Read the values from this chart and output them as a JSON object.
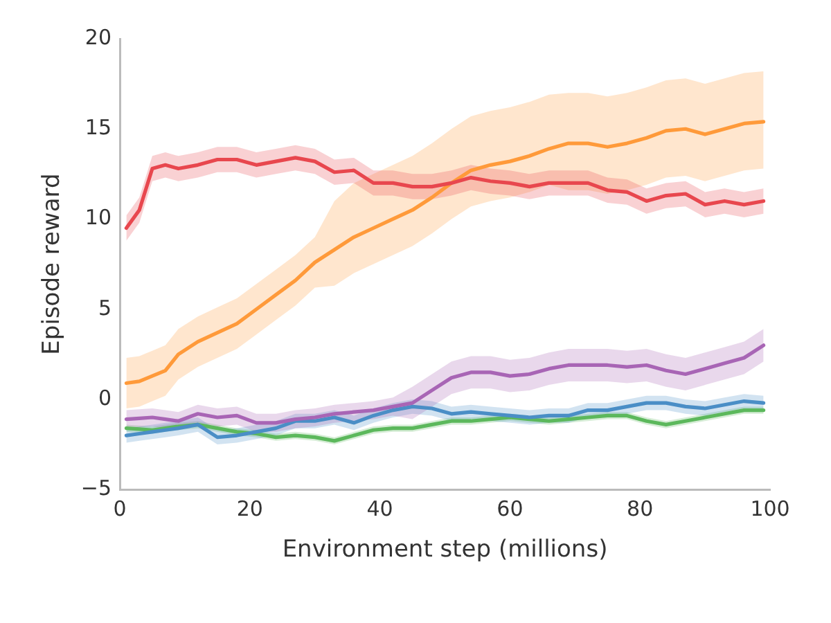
{
  "chart_data": {
    "type": "line",
    "xlabel": "Environment step (millions)",
    "ylabel": "Episode reward",
    "xlim": [
      0,
      100
    ],
    "xticks": [
      0,
      20,
      40,
      60,
      80,
      100
    ],
    "ylim": [
      -5,
      20
    ],
    "yticks": [
      -5,
      0,
      5,
      10,
      15,
      20
    ],
    "grid": false,
    "legend": false,
    "marker": "none",
    "line_style": "solid",
    "x": [
      1,
      3,
      5,
      7,
      9,
      12,
      15,
      18,
      21,
      24,
      27,
      30,
      33,
      36,
      39,
      42,
      45,
      48,
      51,
      54,
      57,
      60,
      63,
      66,
      69,
      72,
      75,
      78,
      81,
      84,
      87,
      90,
      93,
      96,
      99
    ],
    "series": [
      {
        "color": "#e8474e",
        "values": [
          9.5,
          10.5,
          12.8,
          13,
          12.8,
          13,
          13.3,
          13.3,
          13,
          13.2,
          13.4,
          13.2,
          12.6,
          12.7,
          12,
          12,
          11.8,
          11.8,
          12,
          12.3,
          12.1,
          12,
          11.8,
          12,
          12,
          12,
          11.6,
          11.5,
          11,
          11.3,
          11.4,
          10.8,
          11,
          10.8,
          11
        ],
        "lower": [
          8.8,
          9.8,
          12.1,
          12.3,
          12.1,
          12.3,
          12.6,
          12.6,
          12.3,
          12.5,
          12.7,
          12.5,
          11.9,
          12,
          11.3,
          11.3,
          11.1,
          11.1,
          11.3,
          11.6,
          11.4,
          11.3,
          11.1,
          11.3,
          11.3,
          11.3,
          10.9,
          10.8,
          10.3,
          10.6,
          10.7,
          10.1,
          10.3,
          10.1,
          10.3
        ],
        "upper": [
          10.2,
          11.2,
          13.5,
          13.7,
          13.5,
          13.7,
          14,
          14,
          13.7,
          13.9,
          14.1,
          13.9,
          13.3,
          13.4,
          12.7,
          12.7,
          12.5,
          12.5,
          12.7,
          13,
          12.8,
          12.7,
          12.5,
          12.7,
          12.7,
          12.7,
          12.3,
          12.2,
          11.7,
          12,
          12.1,
          11.5,
          11.7,
          11.5,
          11.7
        ]
      },
      {
        "color": "#ff9a3a",
        "values": [
          0.9,
          1,
          1.3,
          1.6,
          2.5,
          3.2,
          3.7,
          4.2,
          5,
          5.8,
          6.6,
          7.6,
          8.3,
          9,
          9.5,
          10,
          10.5,
          11.2,
          12,
          12.7,
          13,
          13.2,
          13.5,
          13.9,
          14.2,
          14.2,
          14,
          14.2,
          14.5,
          14.9,
          15,
          14.7,
          15,
          15.3,
          15.4
        ],
        "lower": [
          -0.5,
          -0.4,
          -0.1,
          0.2,
          1.1,
          1.8,
          2.3,
          2.8,
          3.6,
          4.4,
          5.2,
          6.2,
          6.3,
          7,
          7.5,
          8,
          8.5,
          9.2,
          10,
          10.7,
          11,
          11.2,
          11.5,
          11.9,
          11.6,
          11.6,
          11.4,
          11.6,
          11.9,
          12.3,
          12.4,
          12.1,
          12.4,
          12.7,
          12.8
        ],
        "upper": [
          2.3,
          2.4,
          2.7,
          3,
          3.9,
          4.6,
          5.1,
          5.6,
          6.4,
          7.2,
          8,
          9,
          11,
          12,
          12.5,
          13,
          13.5,
          14.2,
          15,
          15.7,
          16,
          16.2,
          16.5,
          16.9,
          17,
          17,
          16.8,
          17,
          17.3,
          17.7,
          17.8,
          17.5,
          17.8,
          18.1,
          18.2
        ]
      },
      {
        "color": "#a865b5",
        "values": [
          -1.1,
          -1.05,
          -1,
          -1.1,
          -1.2,
          -0.8,
          -1,
          -0.9,
          -1.3,
          -1.3,
          -1.1,
          -1,
          -0.8,
          -0.7,
          -0.6,
          -0.4,
          -0.2,
          0.5,
          1.2,
          1.5,
          1.5,
          1.3,
          1.4,
          1.7,
          1.9,
          1.9,
          1.9,
          1.8,
          1.9,
          1.6,
          1.4,
          1.7,
          2,
          2.3,
          3
        ],
        "lower": [
          -1.6,
          -1.55,
          -1.5,
          -1.6,
          -1.7,
          -1.3,
          -1.5,
          -1.4,
          -1.8,
          -1.8,
          -1.6,
          -1.5,
          -1.3,
          -1.2,
          -1.1,
          -0.9,
          -1.1,
          -0.4,
          0.3,
          0.6,
          0.6,
          0.4,
          0.5,
          0.8,
          1,
          1,
          1,
          0.9,
          1,
          0.7,
          0.5,
          0.8,
          1.1,
          1.4,
          2.1
        ],
        "upper": [
          -0.6,
          -0.55,
          -0.5,
          -0.6,
          -0.7,
          -0.3,
          -0.5,
          -0.4,
          -0.8,
          -0.8,
          -0.6,
          -0.5,
          -0.3,
          -0.2,
          -0.1,
          0.1,
          0.7,
          1.4,
          2.1,
          2.4,
          2.4,
          2.2,
          2.3,
          2.6,
          2.8,
          2.8,
          2.8,
          2.7,
          2.8,
          2.5,
          2.3,
          2.6,
          2.9,
          3.2,
          3.9
        ]
      },
      {
        "color": "#4a8ec6",
        "values": [
          -2,
          -1.9,
          -1.8,
          -1.7,
          -1.6,
          -1.4,
          -2.1,
          -2,
          -1.8,
          -1.6,
          -1.2,
          -1.2,
          -1,
          -1.3,
          -0.9,
          -0.6,
          -0.4,
          -0.5,
          -0.8,
          -0.7,
          -0.8,
          -0.9,
          -1,
          -0.9,
          -0.9,
          -0.6,
          -0.6,
          -0.4,
          -0.2,
          -0.2,
          -0.4,
          -0.5,
          -0.3,
          -0.1,
          -0.2
        ],
        "lower": [
          -2.4,
          -2.3,
          -2.2,
          -2.1,
          -2,
          -1.8,
          -2.5,
          -2.4,
          -2.2,
          -2,
          -1.6,
          -1.6,
          -1.4,
          -1.7,
          -1.3,
          -1,
          -0.8,
          -0.9,
          -1.2,
          -1.1,
          -1.2,
          -1.3,
          -1.4,
          -1.3,
          -1.3,
          -1,
          -1,
          -0.8,
          -0.6,
          -0.6,
          -0.8,
          -0.9,
          -0.7,
          -0.5,
          -0.6
        ],
        "upper": [
          -1.6,
          -1.5,
          -1.4,
          -1.3,
          -1.2,
          -1,
          -1.7,
          -1.6,
          -1.4,
          -1.2,
          -0.8,
          -0.8,
          -0.6,
          -0.9,
          -0.5,
          -0.2,
          0,
          -0.1,
          -0.4,
          -0.3,
          -0.4,
          -0.5,
          -0.6,
          -0.5,
          -0.5,
          -0.2,
          -0.2,
          0,
          0.2,
          0.2,
          0,
          -0.1,
          0.1,
          0.3,
          0.2
        ]
      },
      {
        "color": "#5cb85c",
        "values": [
          -1.6,
          -1.65,
          -1.7,
          -1.6,
          -1.5,
          -1.4,
          -1.6,
          -1.8,
          -1.9,
          -2.1,
          -2,
          -2.1,
          -2.3,
          -2,
          -1.7,
          -1.6,
          -1.6,
          -1.4,
          -1.2,
          -1.2,
          -1.1,
          -1,
          -1.1,
          -1.2,
          -1.1,
          -1,
          -0.9,
          -0.9,
          -1.2,
          -1.4,
          -1.2,
          -1,
          -0.8,
          -0.6,
          -0.6
        ],
        "lower": [
          -1.8,
          -1.85,
          -1.9,
          -1.8,
          -1.7,
          -1.6,
          -1.8,
          -2,
          -2.1,
          -2.3,
          -2.2,
          -2.3,
          -2.5,
          -2.2,
          -1.9,
          -1.8,
          -1.8,
          -1.6,
          -1.4,
          -1.4,
          -1.3,
          -1.2,
          -1.3,
          -1.4,
          -1.3,
          -1.2,
          -1.1,
          -1.1,
          -1.4,
          -1.6,
          -1.4,
          -1.2,
          -1,
          -0.8,
          -0.8
        ],
        "upper": [
          -1.4,
          -1.45,
          -1.5,
          -1.4,
          -1.3,
          -1.2,
          -1.4,
          -1.6,
          -1.7,
          -1.9,
          -1.8,
          -1.9,
          -2.1,
          -1.8,
          -1.5,
          -1.4,
          -1.4,
          -1.2,
          -1,
          -1,
          -0.9,
          -0.8,
          -0.9,
          -1,
          -0.9,
          -0.8,
          -0.7,
          -0.7,
          -1,
          -1.2,
          -1,
          -0.8,
          -0.6,
          -0.4,
          -0.4
        ]
      }
    ]
  }
}
